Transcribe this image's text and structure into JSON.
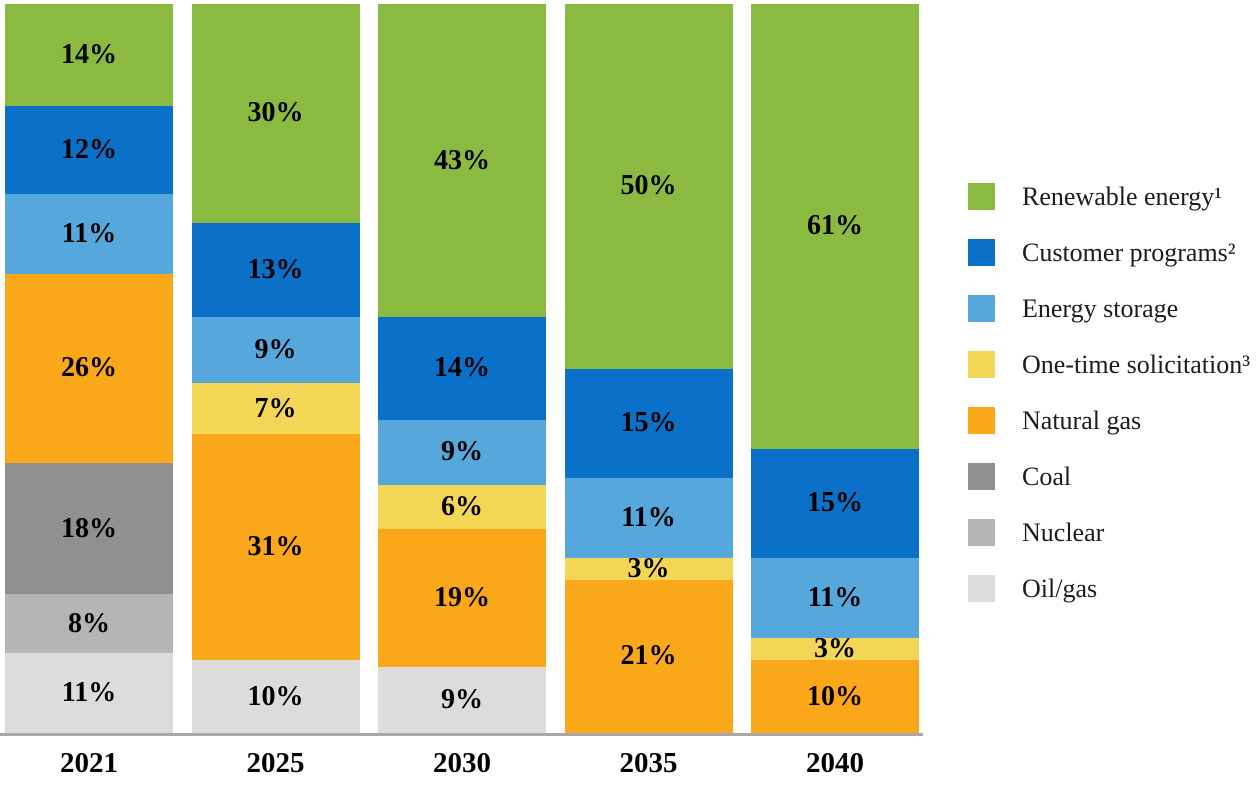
{
  "chart_data": {
    "type": "bar",
    "stacked": true,
    "orientation": "vertical",
    "title": "",
    "xlabel": "",
    "ylabel": "",
    "ylim": [
      0,
      100
    ],
    "gridlines": false,
    "legend_position": "right",
    "value_label_format": "{value}%",
    "axis_line_color": "#a8a8a8",
    "label_text_color": "#000000",
    "categories": [
      "2021",
      "2025",
      "2030",
      "2035",
      "2040"
    ],
    "series": [
      {
        "name": "Renewable energy¹",
        "color": "#8bba40",
        "values": [
          14,
          30,
          43,
          50,
          61
        ]
      },
      {
        "name": "Customer programs²",
        "color": "#0a70c8",
        "values": [
          12,
          13,
          14,
          15,
          15
        ]
      },
      {
        "name": "Energy storage",
        "color": "#55a7dc",
        "values": [
          11,
          9,
          9,
          11,
          11
        ]
      },
      {
        "name": "One-time solicitation³",
        "color": "#f3d655",
        "values": [
          0,
          7,
          6,
          3,
          3
        ]
      },
      {
        "name": "Natural gas",
        "color": "#faa719",
        "values": [
          26,
          31,
          19,
          21,
          10
        ]
      },
      {
        "name": "Coal",
        "color": "#909090",
        "values": [
          18,
          0,
          0,
          0,
          0
        ]
      },
      {
        "name": "Nuclear",
        "color": "#b5b5b5",
        "values": [
          8,
          0,
          0,
          0,
          0
        ]
      },
      {
        "name": "Oil/gas",
        "color": "#dcdcdc",
        "values": [
          11,
          10,
          9,
          0,
          0
        ]
      }
    ]
  }
}
